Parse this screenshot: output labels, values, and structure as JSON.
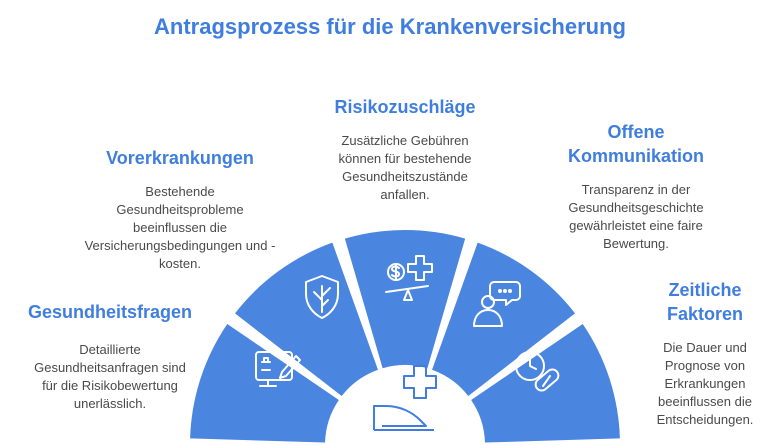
{
  "title": "Antragsprozess für die Krankenversicherung",
  "accent_color": "#4a86e0",
  "center_icon": "health-insurance-cross-hand-icon",
  "segments": [
    {
      "heading": "Gesundheitsfragen",
      "description": "Detaillierte Gesundheitsanfragen sind für die Risikobewertung unerlässlich.",
      "icon": "health-questionnaire-icon"
    },
    {
      "heading": "Vorerkrankungen",
      "description": "Bestehende Gesundheitsprobleme beeinflussen die Versicherungsbedingungen und -kosten.",
      "icon": "shield-tree-icon"
    },
    {
      "heading": "Risikozuschläge",
      "description": "Zusätzliche Gebühren können für bestehende Gesundheitszustände anfallen.",
      "icon": "cost-balance-icon"
    },
    {
      "heading": "Offene Kommunikation",
      "description": "Transparenz in der Gesundheitsgeschichte gewährleistet eine faire Bewertung.",
      "icon": "conversation-person-icon"
    },
    {
      "heading": "Zeitliche Faktoren",
      "description": "Die Dauer und Prognose von Erkrankungen beeinflussen die Entscheidungen.",
      "icon": "clock-pill-icon"
    }
  ]
}
